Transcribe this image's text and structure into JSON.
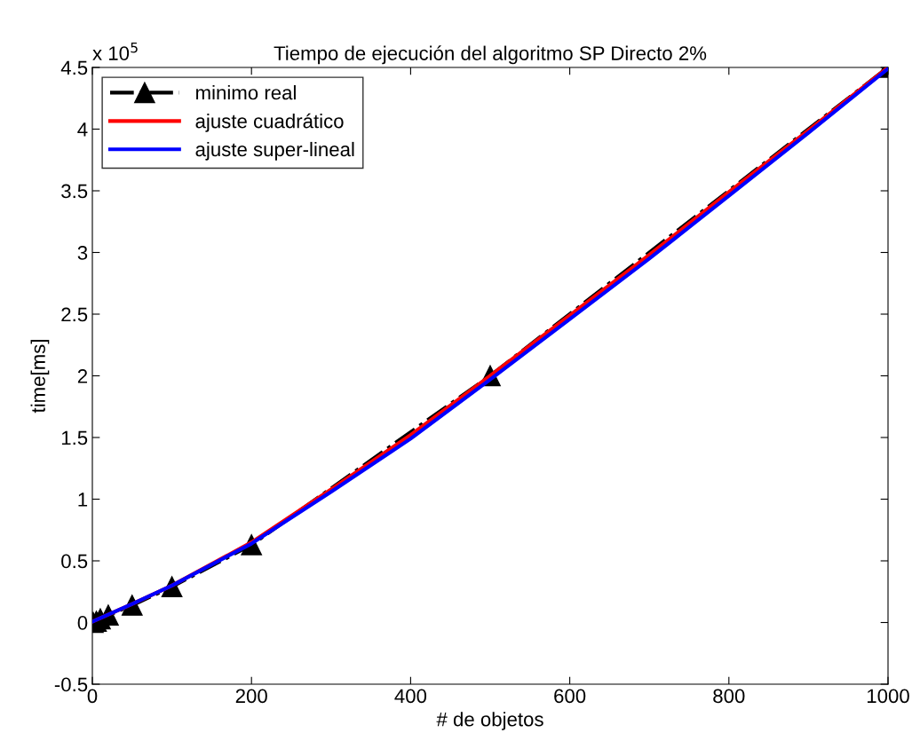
{
  "chart_data": {
    "type": "line",
    "title": "Tiempo de ejecución del algoritmo SP Directo 2%",
    "xlabel": "# de objetos",
    "ylabel": "time[ms]",
    "annotations": [
      "x 10$^{5}$"
    ],
    "series": [
      {
        "name": "minimo real",
        "color": "#000000",
        "x": [
          1,
          5,
          10,
          20,
          50,
          100,
          200,
          500,
          1000
        ],
        "values": [
          0.0,
          0.01,
          0.03,
          0.06,
          0.14,
          0.29,
          0.63,
          2.0,
          4.5
        ],
        "marker": "triangle",
        "line_style": "dashdot"
      },
      {
        "name": "ajuste cuadrático",
        "color": "#ff0000",
        "x": [
          1,
          50,
          100,
          200,
          300,
          400,
          500,
          600,
          700,
          800,
          900,
          1000
        ],
        "values": [
          0.01,
          0.15,
          0.3,
          0.65,
          1.08,
          1.52,
          2.0,
          2.49,
          2.98,
          3.49,
          3.99,
          4.5
        ],
        "marker": "none",
        "line_style": "solid"
      },
      {
        "name": "ajuste super-lineal",
        "color": "#0000ff",
        "x": [
          1,
          50,
          100,
          200,
          300,
          400,
          500,
          600,
          700,
          800,
          900,
          1000
        ],
        "values": [
          0.01,
          0.15,
          0.3,
          0.64,
          1.06,
          1.49,
          1.97,
          2.46,
          2.95,
          3.46,
          3.97,
          4.49
        ],
        "marker": "none",
        "line_style": "solid"
      }
    ],
    "xlim": [
      0,
      1000
    ],
    "xticks": [
      0,
      200,
      400,
      600,
      800,
      1000
    ],
    "ylim": [
      -0.5,
      4.5
    ],
    "yticks": [
      -0.5,
      0,
      0.5,
      1,
      1.5,
      2,
      2.5,
      3,
      3.5,
      4,
      4.5
    ],
    "grid": false,
    "legend": "top left"
  }
}
